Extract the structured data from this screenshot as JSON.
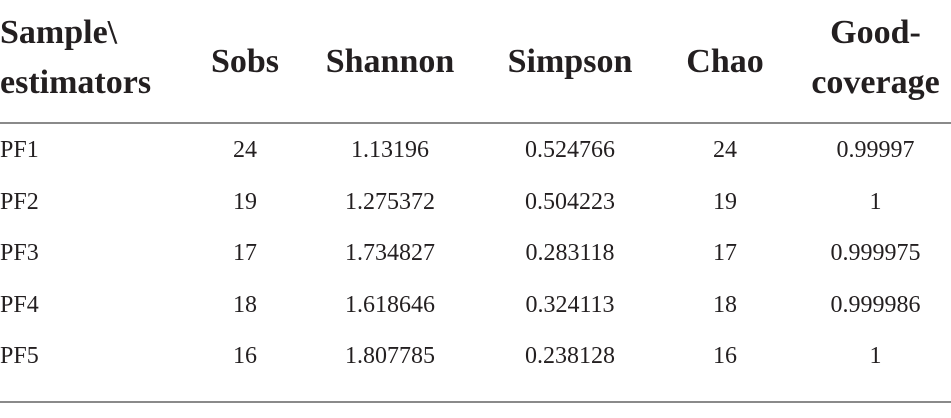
{
  "table": {
    "header": [
      [
        "Sample\\",
        "estimators"
      ],
      [
        "Sobs"
      ],
      [
        "Shannon"
      ],
      [
        "Simpson"
      ],
      [
        "Chao"
      ],
      [
        "Good-",
        "coverage"
      ]
    ],
    "rows": [
      [
        "PF1",
        "24",
        "1.13196",
        "0.524766",
        "24",
        "0.99997"
      ],
      [
        "PF2",
        "19",
        "1.275372",
        "0.504223",
        "19",
        "1"
      ],
      [
        "PF3",
        "17",
        "1.734827",
        "0.283118",
        "17",
        "0.999975"
      ],
      [
        "PF4",
        "18",
        "1.618646",
        "0.324113",
        "18",
        "0.999986"
      ],
      [
        "PF5",
        "16",
        "1.807785",
        "0.238128",
        "16",
        "1"
      ]
    ]
  }
}
